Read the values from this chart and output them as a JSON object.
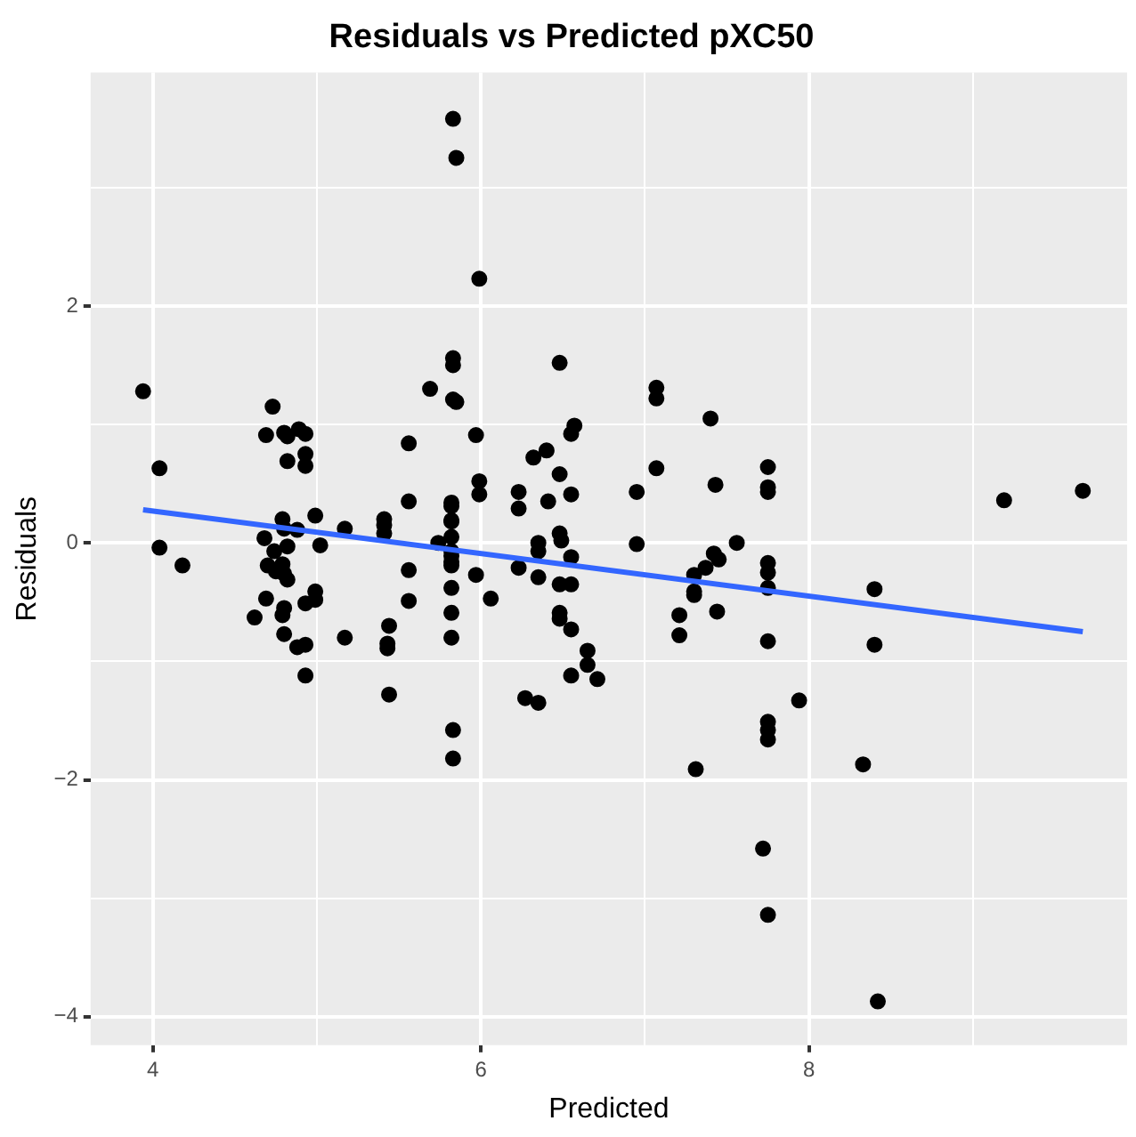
{
  "chart_data": {
    "type": "scatter",
    "title": "Residuals vs Predicted pXC50",
    "xlabel": "Predicted",
    "ylabel": "Residuals",
    "xlim": [
      3.62,
      9.94
    ],
    "ylim": [
      -4.24,
      3.97
    ],
    "xticks": [
      {
        "value": 5,
        "label": null
      },
      {
        "value": 7,
        "label": null
      },
      {
        "value": 9,
        "label": null
      },
      4,
      6,
      8
    ],
    "yticks": [
      {
        "value": -3,
        "label": null
      },
      {
        "value": -1,
        "label": null
      },
      {
        "value": 1,
        "label": null
      },
      {
        "value": 3,
        "label": null
      },
      -4,
      -2,
      0,
      2
    ],
    "grid": true,
    "legend": false,
    "marker": "circle",
    "series": [
      {
        "color": "#000000",
        "x": [
          3.94,
          4.04,
          4.04,
          4.18,
          4.73,
          4.69,
          4.8,
          4.82,
          4.89,
          4.93,
          4.82,
          4.93,
          4.93,
          4.79,
          4.8,
          4.88,
          4.99,
          4.68,
          4.82,
          5.02,
          4.74,
          4.7,
          4.79,
          4.75,
          4.8,
          4.82,
          4.69,
          4.8,
          4.79,
          4.62,
          4.99,
          4.99,
          4.93,
          4.8,
          4.88,
          4.93,
          4.93,
          5.17,
          5.17,
          5.41,
          5.41,
          5.41,
          5.44,
          5.43,
          5.43,
          5.44,
          5.56,
          5.56,
          5.56,
          5.56,
          5.69,
          5.74,
          5.83,
          5.83,
          5.83,
          5.85,
          5.82,
          5.82,
          5.82,
          5.82,
          5.82,
          5.82,
          5.82,
          5.82,
          5.82,
          5.82,
          5.82,
          5.82,
          5.83,
          5.85,
          5.99,
          5.97,
          5.99,
          5.99,
          5.97,
          6.06,
          5.83,
          5.83,
          6.23,
          6.23,
          6.23,
          6.27,
          6.35,
          6.32,
          6.4,
          6.41,
          6.35,
          6.35,
          6.35,
          6.48,
          6.48,
          6.55,
          6.48,
          6.49,
          6.55,
          6.48,
          6.55,
          6.48,
          6.48,
          6.55,
          6.55,
          6.57,
          6.65,
          6.65,
          6.71,
          6.55,
          6.95,
          6.95,
          7.07,
          7.07,
          7.07,
          7.21,
          7.21,
          7.31,
          7.3,
          7.3,
          7.3,
          7.37,
          7.4,
          7.43,
          7.42,
          7.45,
          7.44,
          7.56,
          7.75,
          7.75,
          7.75,
          7.75,
          7.75,
          7.75,
          7.75,
          7.94,
          7.75,
          7.75,
          7.75,
          7.72,
          7.75,
          8.4,
          8.4,
          8.33,
          8.42,
          9.19,
          9.67
        ],
        "values": [
          1.28,
          0.63,
          -0.04,
          -0.19,
          1.15,
          0.91,
          0.93,
          0.9,
          0.96,
          0.92,
          0.69,
          0.75,
          0.65,
          0.2,
          0.12,
          0.11,
          0.23,
          0.04,
          -0.03,
          -0.02,
          -0.07,
          -0.19,
          -0.18,
          -0.24,
          -0.26,
          -0.31,
          -0.47,
          -0.55,
          -0.61,
          -0.63,
          -0.41,
          -0.48,
          -0.51,
          -0.77,
          -0.88,
          -0.86,
          -1.12,
          0.12,
          -0.8,
          0.2,
          0.15,
          0.08,
          -0.7,
          -0.85,
          -0.89,
          -1.28,
          0.84,
          0.35,
          -0.23,
          -0.49,
          1.3,
          0.0,
          1.56,
          1.5,
          1.21,
          1.19,
          0.34,
          0.31,
          0.19,
          0.18,
          0.05,
          -0.07,
          -0.11,
          -0.16,
          -0.19,
          -0.38,
          -0.59,
          -0.8,
          3.58,
          3.25,
          2.23,
          0.91,
          0.52,
          0.41,
          -0.27,
          -0.47,
          -1.58,
          -1.82,
          0.43,
          0.29,
          -0.21,
          -1.31,
          -1.35,
          0.72,
          0.78,
          0.35,
          0.0,
          -0.07,
          -0.29,
          1.52,
          0.58,
          0.41,
          0.08,
          0.02,
          -0.12,
          -0.35,
          -0.35,
          -0.59,
          -0.64,
          -0.73,
          0.92,
          0.99,
          -0.91,
          -1.03,
          -1.15,
          -1.12,
          0.43,
          -0.01,
          1.31,
          1.22,
          0.63,
          -0.61,
          -0.78,
          -1.91,
          -0.27,
          -0.41,
          -0.44,
          -0.21,
          1.05,
          0.49,
          -0.09,
          -0.14,
          -0.58,
          0.0,
          0.64,
          0.47,
          0.43,
          -0.17,
          -0.25,
          -0.38,
          -0.83,
          -1.33,
          -1.51,
          -1.58,
          -1.66,
          -2.58,
          -3.14,
          -0.39,
          -0.86,
          -1.87,
          -3.87,
          0.36,
          0.44
        ]
      },
      {
        "type": "line",
        "color": "#3366ff",
        "marker": "none",
        "x": [
          3.94,
          9.67
        ],
        "values": [
          0.28,
          -0.75
        ]
      }
    ]
  }
}
